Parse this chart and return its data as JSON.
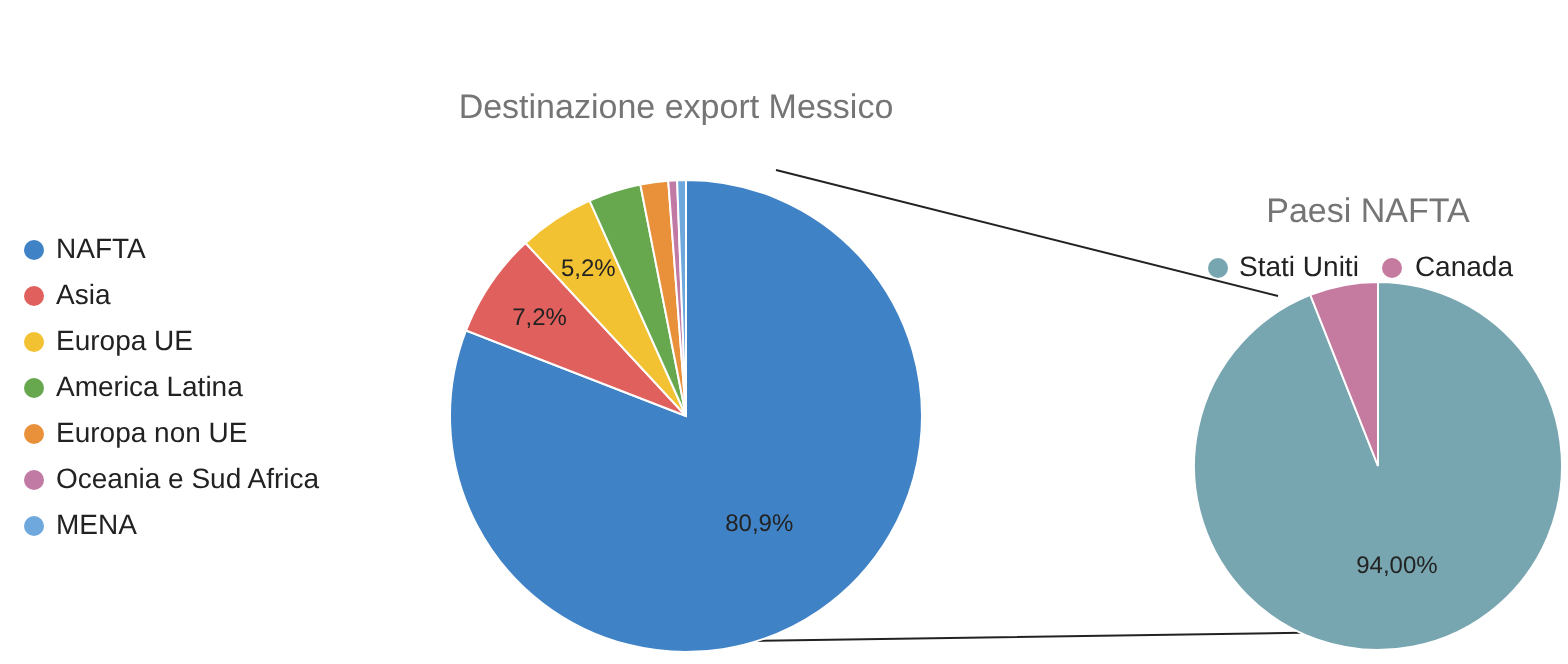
{
  "chart_data": [
    {
      "type": "pie",
      "title": "Destinazione export Messico",
      "categories": [
        "NAFTA",
        "Asia",
        "Europa UE",
        "America Latina",
        "Europa non UE",
        "Oceania e Sud Africa",
        "MENA"
      ],
      "values": [
        80.9,
        7.2,
        5.2,
        3.6,
        1.9,
        0.6,
        0.6
      ],
      "value_labels": [
        "80,9%",
        "7,2%",
        "5,2%",
        null,
        null,
        null,
        null
      ],
      "colors": [
        "#3f83c6",
        "#e0605e",
        "#f2c232",
        "#67a84f",
        "#e8913a",
        "#c07aa4",
        "#6fa8dc"
      ],
      "legend": "left"
    },
    {
      "type": "pie",
      "title": "Paesi NAFTA",
      "categories": [
        "Stati Uniti",
        "Canada"
      ],
      "values": [
        94,
        6
      ],
      "value_labels": [
        "94,00%",
        null
      ],
      "colors": [
        "#78a6b0",
        "#c57ba0"
      ],
      "legend": "top"
    }
  ]
}
